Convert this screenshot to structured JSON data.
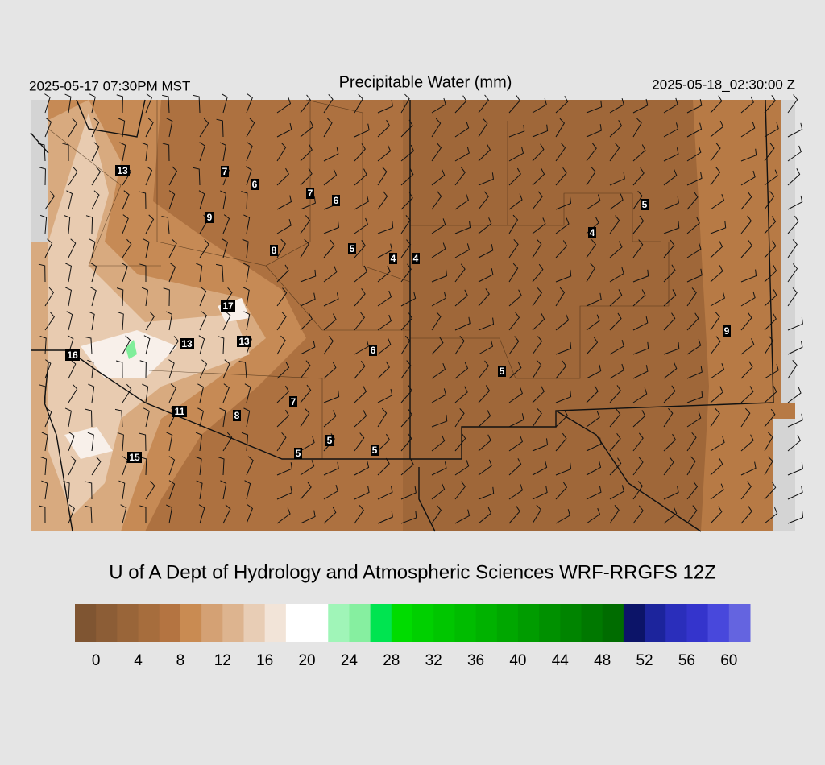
{
  "header": {
    "local_time": "2025-05-17 07:30PM MST",
    "title": "Precipitable Water (mm)",
    "utc_time": "2025-05-18_02:30:00 Z"
  },
  "station_values": [
    13,
    7,
    6,
    7,
    6,
    9,
    8,
    5,
    4,
    4,
    5,
    4,
    17,
    13,
    13,
    16,
    6,
    5,
    9,
    7,
    11,
    8,
    5,
    5,
    5,
    15
  ],
  "footer": {
    "credit": "U of A Dept of Hydrology and Atmospheric Sciences WRF-RRGFS 12Z"
  },
  "colorbar": {
    "range": [
      -2,
      62
    ],
    "colors": [
      "#7f5532",
      "#8c5d36",
      "#996539",
      "#a66d3d",
      "#b47441",
      "#c98b52",
      "#d4a174",
      "#ddb48f",
      "#e8cdb5",
      "#f2e4d8",
      "#ffffff",
      "#ffffff",
      "#a0f5b8",
      "#86efa0",
      "#00e450",
      "#00dc00",
      "#00d000",
      "#00c600",
      "#00bc00",
      "#00b200",
      "#00a700",
      "#009c00",
      "#009000",
      "#008400",
      "#007800",
      "#006c00",
      "#0c1468",
      "#1c249c",
      "#2a2ebb",
      "#3434cc",
      "#4848dc",
      "#6464e0"
    ],
    "ticks": [
      0,
      4,
      8,
      12,
      16,
      20,
      24,
      28,
      32,
      36,
      40,
      44,
      48,
      52,
      56,
      60
    ]
  }
}
